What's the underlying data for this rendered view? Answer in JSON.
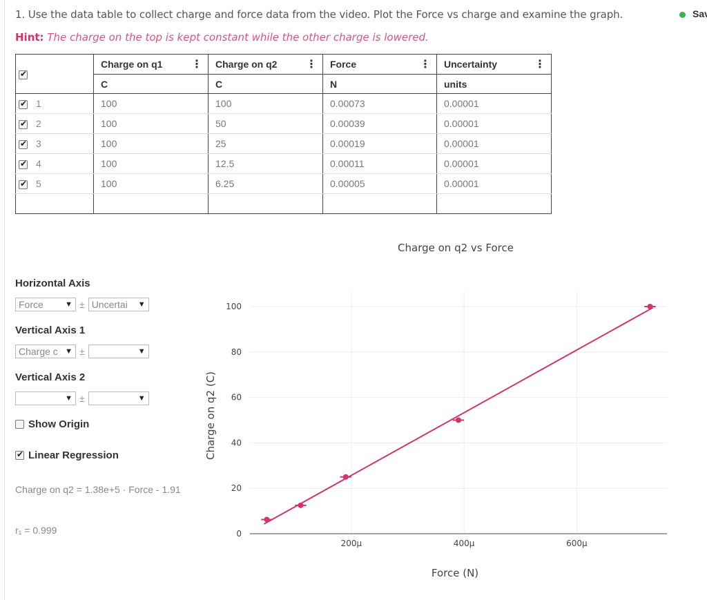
{
  "question": "1. Use the data table to collect charge and force data from the video.  Plot the Force vs charge and examine the graph.",
  "hint": {
    "label": "Hint:",
    "text": "The charge on the top is kept constant while the other charge is lowered."
  },
  "status": "Sav",
  "table": {
    "columns": [
      {
        "name": "Charge on q1",
        "unit": "C"
      },
      {
        "name": "Charge on q2",
        "unit": "C"
      },
      {
        "name": "Force",
        "unit": "N"
      },
      {
        "name": "Uncertainty",
        "unit": "units"
      }
    ],
    "menu_glyph": "⋮",
    "rows": [
      {
        "index": "1",
        "cells": [
          "100",
          "100",
          "0.00073",
          "0.00001"
        ]
      },
      {
        "index": "2",
        "cells": [
          "100",
          "50",
          "0.00039",
          "0.00001"
        ]
      },
      {
        "index": "3",
        "cells": [
          "100",
          "25",
          "0.00019",
          "0.00001"
        ]
      },
      {
        "index": "4",
        "cells": [
          "100",
          "12.5",
          "0.00011",
          "0.00001"
        ]
      },
      {
        "index": "5",
        "cells": [
          "100",
          "6.25",
          "0.00005",
          "0.00001"
        ]
      }
    ]
  },
  "controls": {
    "horizontal_axis": {
      "label": "Horizontal Axis",
      "value": "Force",
      "pm": "±",
      "uncertainty": "Uncertai"
    },
    "vertical_axis_1": {
      "label": "Vertical Axis 1",
      "value": "Charge c",
      "pm": "±",
      "uncertainty": ""
    },
    "vertical_axis_2": {
      "label": "Vertical Axis 2",
      "value": "",
      "pm": "±",
      "uncertainty": ""
    },
    "show_origin": {
      "label": "Show Origin",
      "checked": false
    },
    "linear_regression": {
      "label": "Linear Regression",
      "checked": true
    },
    "equation": "Charge on q2 = 1.38e+5 · Force - 1.91",
    "r_value": "r₁ = 0.999"
  },
  "chart_data": {
    "type": "scatter",
    "title": "Charge on q2 vs Force",
    "xlabel": "Force (N)",
    "ylabel": "Charge on q2 (C)",
    "xlim": [
      2e-05,
      0.00076
    ],
    "ylim": [
      0,
      100
    ],
    "x_ticks": [
      0.0002,
      0.0004,
      0.0006
    ],
    "x_tick_labels": [
      "200μ",
      "400μ",
      "600μ"
    ],
    "y_ticks": [
      0,
      20,
      40,
      60,
      80,
      100
    ],
    "y_tick_labels": [
      "0",
      "20",
      "40",
      "60",
      "80",
      "100"
    ],
    "grid": true,
    "series": [
      {
        "x": [
          0.00073,
          0.00039,
          0.00019,
          0.00011,
          5e-05
        ],
        "y": [
          100,
          50,
          25,
          12.5,
          6.25
        ],
        "x_error": 1e-05,
        "color": "#d6336c"
      }
    ],
    "regression": {
      "slope": 138000,
      "intercept": -1.91,
      "color": "#d6336c"
    }
  }
}
